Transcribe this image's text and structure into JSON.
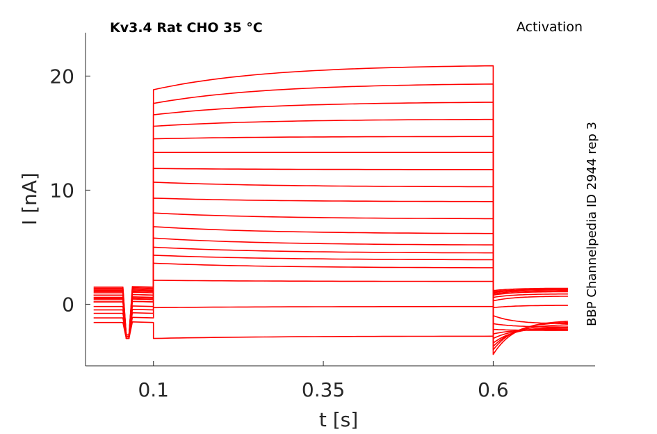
{
  "chart_data": {
    "type": "line",
    "title": "Kv3.4  Rat  CHO  35 °C",
    "protocol": "Activation",
    "side_label": "BBP Channelpedia ID 2944 rep 3",
    "xlabel": "t [s]",
    "ylabel": "I [nA]",
    "xlim": [
      0.0,
      0.75
    ],
    "ylim": [
      -5.4,
      23.8
    ],
    "xticks": [
      0.1,
      0.35,
      0.6
    ],
    "xtick_labels": [
      "0.1",
      "0.35",
      "0.6"
    ],
    "yticks": [
      0,
      10,
      20
    ],
    "ytick_labels": [
      "0",
      "10",
      "20"
    ],
    "grid": false,
    "line_color": "#ff0000",
    "step_window": [
      0.1,
      0.6
    ],
    "series": [
      {
        "pre": -1.6,
        "step_start": -3.0,
        "step_end": -2.8,
        "tail_start": -4.4,
        "tail_end": -1.5
      },
      {
        "pre": -1.2,
        "step_start": -0.3,
        "step_end": -0.2,
        "tail_start": -4.0,
        "tail_end": -1.6
      },
      {
        "pre": -0.8,
        "step_start": 2.1,
        "step_end": 2.0,
        "tail_start": -3.7,
        "tail_end": -1.8
      },
      {
        "pre": -0.5,
        "step_start": 3.6,
        "step_end": 3.2,
        "tail_start": -3.4,
        "tail_end": -2.0
      },
      {
        "pre": -0.2,
        "step_start": 4.3,
        "step_end": 3.9,
        "tail_start": -3.0,
        "tail_end": -2.1
      },
      {
        "pre": 0.2,
        "step_start": 5.0,
        "step_end": 4.5,
        "tail_start": -2.6,
        "tail_end": -2.2
      },
      {
        "pre": 0.5,
        "step_start": 5.8,
        "step_end": 5.2,
        "tail_start": -2.2,
        "tail_end": -2.3
      },
      {
        "pre": 0.8,
        "step_start": 6.8,
        "step_end": 6.2,
        "tail_start": -1.7,
        "tail_end": -2.0
      },
      {
        "pre": 1.1,
        "step_start": 8.0,
        "step_end": 7.5,
        "tail_start": -1.0,
        "tail_end": -1.7
      },
      {
        "pre": 1.3,
        "step_start": 9.3,
        "step_end": 9.0,
        "tail_start": -0.3,
        "tail_end": -0.1
      },
      {
        "pre": 1.5,
        "step_start": 10.7,
        "step_end": 10.3,
        "tail_start": 0.3,
        "tail_end": 0.7
      },
      {
        "pre": 1.4,
        "step_start": 11.9,
        "step_end": 11.8,
        "tail_start": 0.6,
        "tail_end": 0.9
      },
      {
        "pre": 1.2,
        "step_start": 13.3,
        "step_end": 13.3,
        "tail_start": 0.8,
        "tail_end": 1.1
      },
      {
        "pre": 1.0,
        "step_start": 14.5,
        "step_end": 14.7,
        "tail_start": 0.9,
        "tail_end": 1.2
      },
      {
        "pre": 0.8,
        "step_start": 15.6,
        "step_end": 16.2,
        "tail_start": 1.0,
        "tail_end": 1.3
      },
      {
        "pre": 0.6,
        "step_start": 16.6,
        "step_end": 17.7,
        "tail_start": 1.1,
        "tail_end": 1.3
      },
      {
        "pre": 0.4,
        "step_start": 17.6,
        "step_end": 19.3,
        "tail_start": 1.1,
        "tail_end": 1.3
      },
      {
        "pre": 0.2,
        "step_start": 18.8,
        "step_end": 20.9,
        "tail_start": 1.2,
        "tail_end": 1.4
      }
    ]
  }
}
